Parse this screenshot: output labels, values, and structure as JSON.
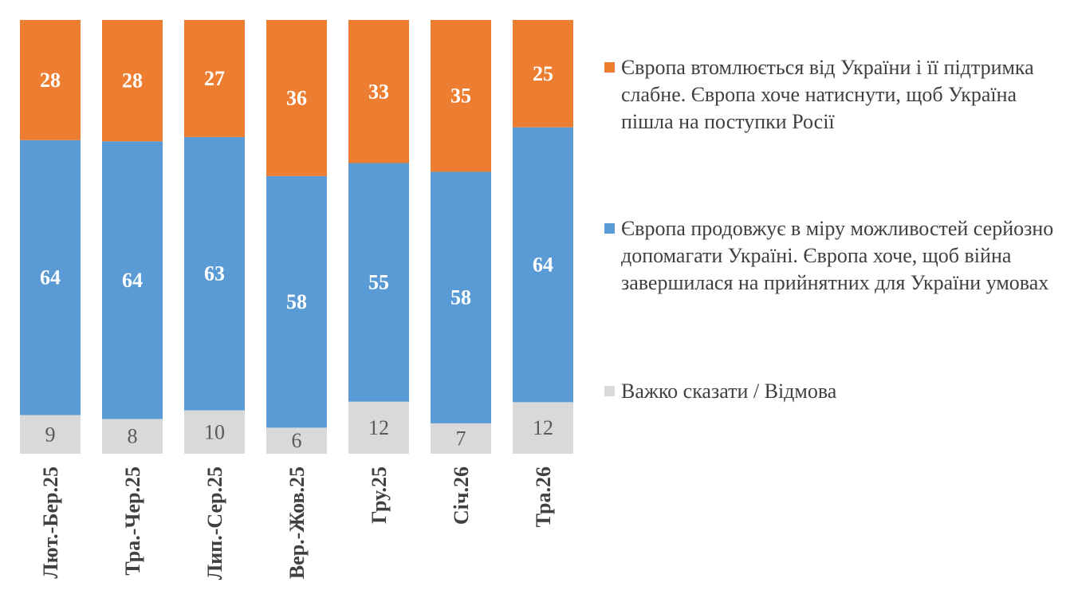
{
  "chart_data": {
    "type": "bar",
    "stacked": true,
    "percent_stacked": true,
    "categories": [
      "Лют.-Бер.25",
      "Тра.-Чер.25",
      "Лип.-Сер.25",
      "Вер.-Жов.25",
      "Гру.25",
      "Січ.26",
      "Тра.26"
    ],
    "series": [
      {
        "name": "Важко сказати / Відмова",
        "color": "#d9d9d9",
        "values": [
          9,
          8,
          10,
          6,
          12,
          7,
          12
        ]
      },
      {
        "name": "Європа продовжує в міру можливостей серйозно допомагати Україні. Європа хоче, щоб війна завершилася на прийнятних для України умовах",
        "color": "#5b9bd5",
        "values": [
          64,
          64,
          63,
          58,
          55,
          58,
          64
        ]
      },
      {
        "name": "Європа втомлюється від України і її підтримка слабне. Європа хоче натиснути, щоб Україна пішла на поступки Росії",
        "color": "#ed7d31",
        "values": [
          28,
          28,
          27,
          36,
          33,
          35,
          25
        ]
      }
    ],
    "legend_position": "right",
    "legend_order": [
      2,
      1,
      0
    ],
    "grid": false,
    "data_labels": true
  }
}
